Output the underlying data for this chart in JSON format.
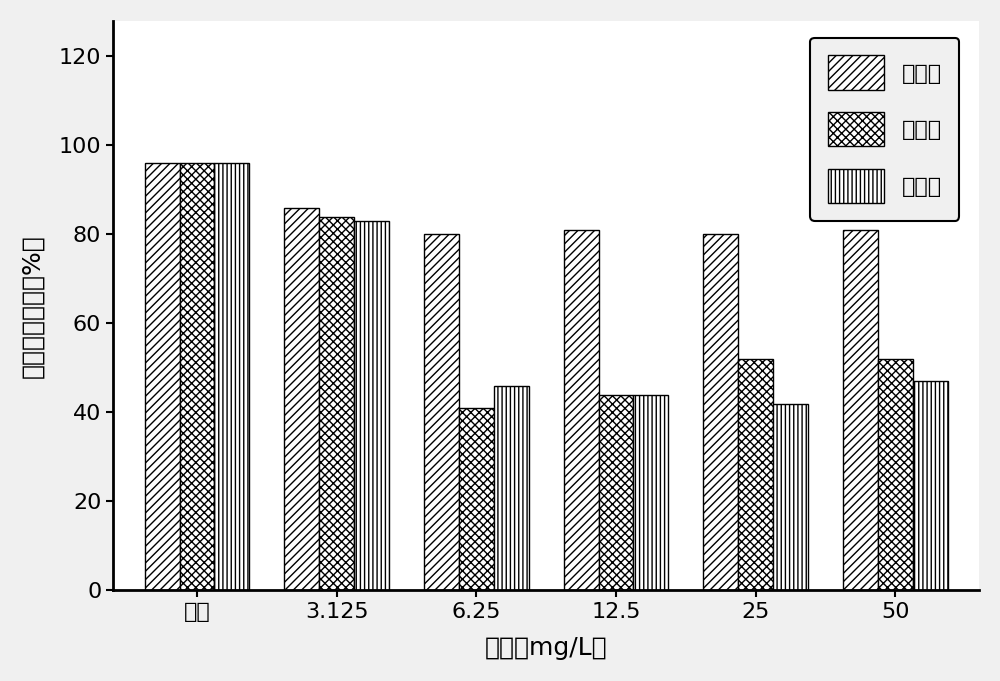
{
  "categories": [
    "对照",
    "3.125",
    "6.25",
    "12.5",
    "25",
    "50"
  ],
  "xlabel": "浓度（mg/L）",
  "ylabel": "细胞相对活力（%）",
  "ylim": [
    0,
    128
  ],
  "yticks": [
    0,
    20,
    40,
    60,
    80,
    100,
    120
  ],
  "series": {
    "纳米金": [
      96,
      86,
      80,
      81,
      80,
      81
    ],
    "纳米銀": [
      96,
      84,
      41,
      44,
      52,
      52
    ],
    "硯酸銀": [
      96,
      83,
      46,
      44,
      42,
      47
    ]
  },
  "hatch_patterns": [
    "////",
    "xxxx",
    "||||"
  ],
  "legend_labels": [
    "纳米金",
    "纳米銀",
    "硯酸銀"
  ],
  "bar_facecolor": "white",
  "bar_edgecolor": "#000000",
  "background_color": "#f0f0f0",
  "plot_bg_color": "white",
  "bar_width": 0.25,
  "label_fontsize": 18,
  "tick_fontsize": 16,
  "legend_fontsize": 16
}
